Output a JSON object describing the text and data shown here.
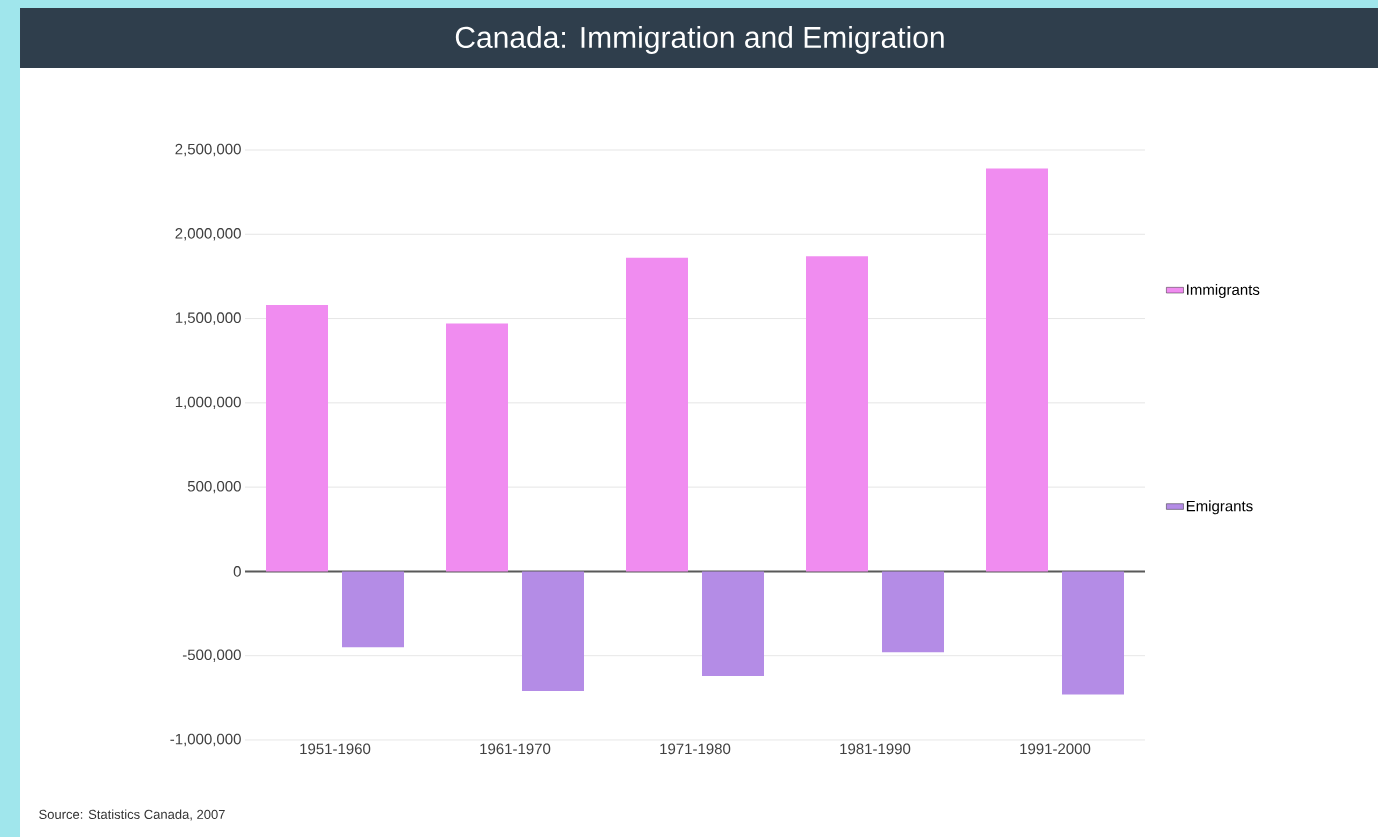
{
  "chart_data": {
    "type": "bar",
    "title": "Canada: Immigration and Emigration",
    "categories": [
      "1951-1960",
      "1961-1970",
      "1971-1980",
      "1981-1990",
      "1991-2000"
    ],
    "series": [
      {
        "name": "Immigrants",
        "color": "#f08cf0",
        "values": [
          1580000,
          1470000,
          1860000,
          1870000,
          2390000
        ]
      },
      {
        "name": "Emigrants",
        "color": "#b48ce6",
        "values": [
          -450000,
          -710000,
          -620000,
          -480000,
          -730000
        ]
      }
    ],
    "ylim": [
      -1000000,
      2500000
    ],
    "yticks": [
      {
        "value": -1000000,
        "label": "-1,000,000"
      },
      {
        "value": -500000,
        "label": "-500,000"
      },
      0,
      {
        "value": 500000,
        "label": "500,000"
      },
      {
        "value": 1000000,
        "label": "1,000,000"
      },
      {
        "value": 1500000,
        "label": "1,500,000"
      },
      {
        "value": 2000000,
        "label": "2,000,000"
      },
      {
        "value": 2500000,
        "label": "2,500,000"
      }
    ],
    "grid": "y",
    "legend": "right",
    "annotations": [
      "Source: Statistics Canada, 2007"
    ]
  }
}
